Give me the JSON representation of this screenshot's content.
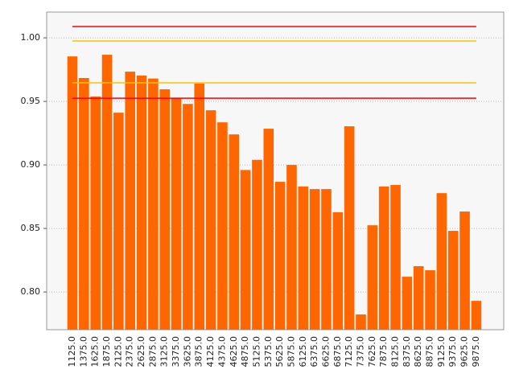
{
  "chart_data": {
    "type": "bar",
    "categories": [
      "1125.0",
      "1375.0",
      "1625.0",
      "1875.0",
      "2125.0",
      "2375.0",
      "2625.0",
      "2875.0",
      "3125.0",
      "3375.0",
      "3625.0",
      "3875.0",
      "4125.0",
      "4375.0",
      "4625.0",
      "4875.0",
      "5125.0",
      "5375.0",
      "5625.0",
      "5875.0",
      "6125.0",
      "6375.0",
      "6625.0",
      "6875.0",
      "7125.0",
      "7375.0",
      "7625.0",
      "7875.0",
      "8125.0",
      "8375.0",
      "8625.0",
      "8875.0",
      "9125.0",
      "9375.0",
      "9625.0",
      "9875.0"
    ],
    "values": [
      0.9854,
      0.9684,
      0.9538,
      0.9867,
      0.9411,
      0.9734,
      0.9703,
      0.968,
      0.9595,
      0.9525,
      0.948,
      0.964,
      0.943,
      0.9335,
      0.924,
      0.896,
      0.904,
      0.9285,
      0.8867,
      0.9,
      0.883,
      0.881,
      0.881,
      0.8627,
      0.9304,
      0.7823,
      0.8525,
      0.883,
      0.8842,
      0.812,
      0.8203,
      0.8171,
      0.8778,
      0.8481,
      0.8633,
      0.793
    ],
    "color": "#ff6600",
    "ylim": [
      0.7703,
      1.0203
    ],
    "yticks": [
      {
        "value": 0.8,
        "label": "0.80"
      },
      {
        "value": 0.85,
        "label": "0.85"
      },
      {
        "value": 0.9,
        "label": "0.90"
      },
      {
        "value": 0.95,
        "label": "0.95"
      },
      {
        "value": 1.0,
        "label": "1.00"
      }
    ],
    "grid": true,
    "hlines": [
      {
        "value": 1.0089,
        "color": "#ff0000"
      },
      {
        "value": 0.9975,
        "color": "#ffc000"
      },
      {
        "value": 0.9646,
        "color": "#ffc000"
      },
      {
        "value": 0.9525,
        "color": "#ff0000"
      }
    ]
  }
}
